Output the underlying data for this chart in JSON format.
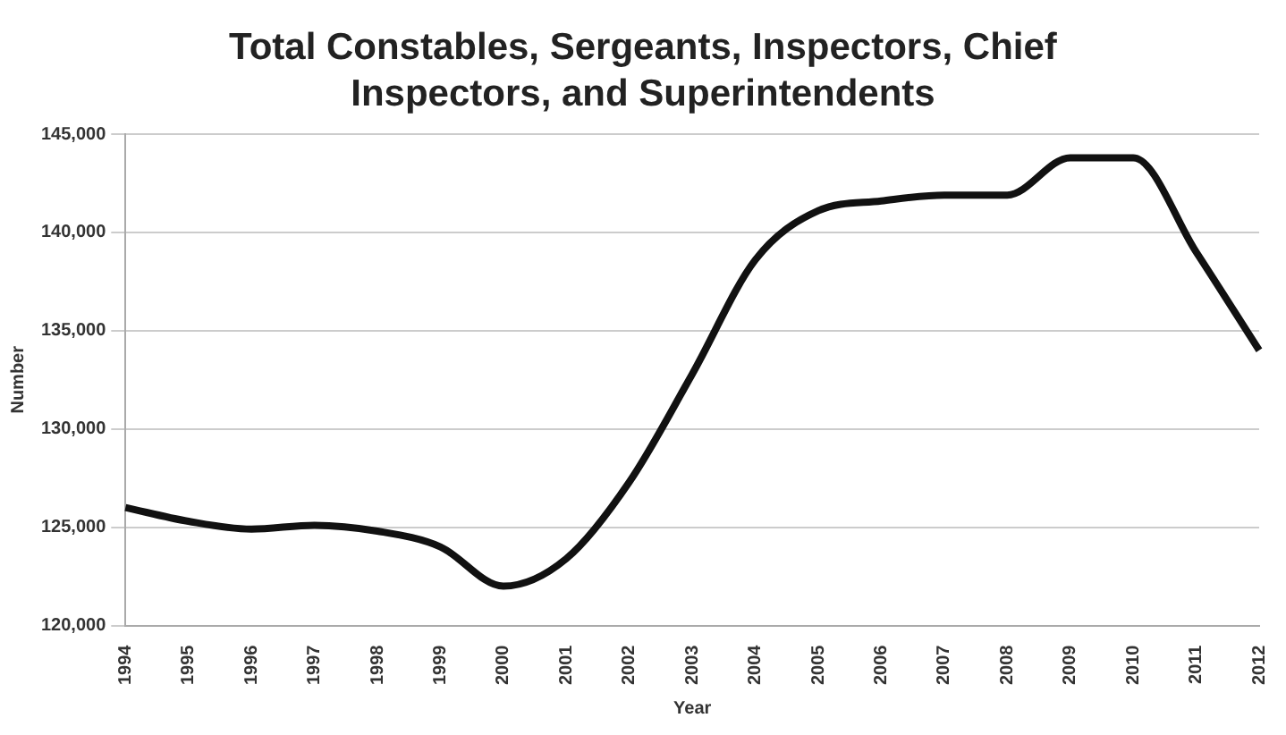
{
  "chart_data": {
    "type": "line",
    "title": "Total Constables, Sergeants, Inspectors, Chief Inspectors, and Superintendents",
    "xlabel": "Year",
    "ylabel": "Number",
    "categories": [
      "1994",
      "1995",
      "1996",
      "1997",
      "1998",
      "1999",
      "2000",
      "2001",
      "2002",
      "2003",
      "2004",
      "2005",
      "2006",
      "2007",
      "2008",
      "2009",
      "2010",
      "2011",
      "2012"
    ],
    "series": [
      {
        "color": "#111111",
        "values": [
          126000,
          125300,
          124900,
          125100,
          124800,
          124000,
          122000,
          123400,
          127300,
          132800,
          138600,
          141100,
          141600,
          141900,
          141900,
          143800,
          143800,
          139000,
          134000
        ]
      }
    ],
    "ylim": [
      120000,
      145000
    ],
    "yticks": [
      {
        "value": 120000,
        "label": "120,000"
      },
      {
        "value": 125000,
        "label": "125,000"
      },
      {
        "value": 130000,
        "label": "130,000"
      },
      {
        "value": 135000,
        "label": "135,000"
      },
      {
        "value": 140000,
        "label": "140,000"
      },
      {
        "value": 145000,
        "label": "145,000"
      }
    ],
    "grid": "y",
    "legend": false,
    "marker": "none",
    "line_style": "solid"
  }
}
